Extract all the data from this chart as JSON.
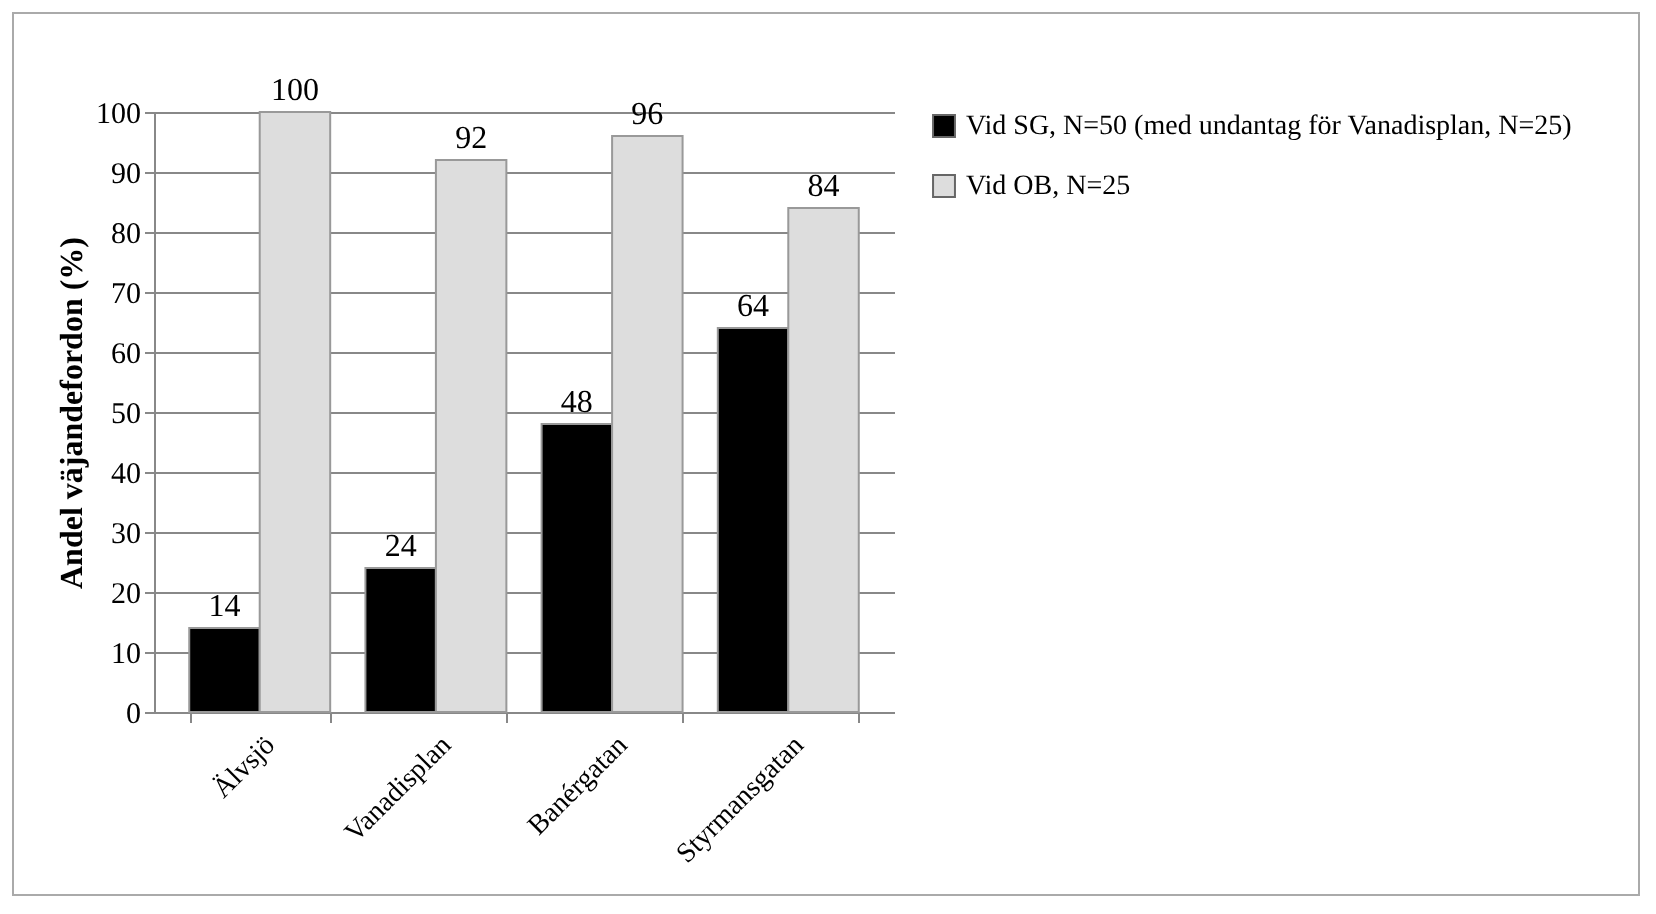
{
  "chart_data": {
    "type": "bar",
    "ylabel": "Andel väjandefordon (%)",
    "categories": [
      "Älvsjö",
      "Vanadisplan",
      "Banérgatan",
      "Styrmansgatan"
    ],
    "series": [
      {
        "name": "Vid SG, N=50 (med undantag för Vanadisplan, N=25)",
        "color": "#000000",
        "values": [
          14,
          24,
          48,
          64
        ]
      },
      {
        "name": "Vid OB, N=25",
        "color": "#dddddd",
        "values": [
          100,
          92,
          96,
          84
        ]
      }
    ],
    "ylim": [
      0,
      100
    ],
    "yticks": [
      0,
      10,
      20,
      30,
      40,
      50,
      60,
      70,
      80,
      90,
      100
    ],
    "grid": "y",
    "legend": "right",
    "data_labels": true
  }
}
